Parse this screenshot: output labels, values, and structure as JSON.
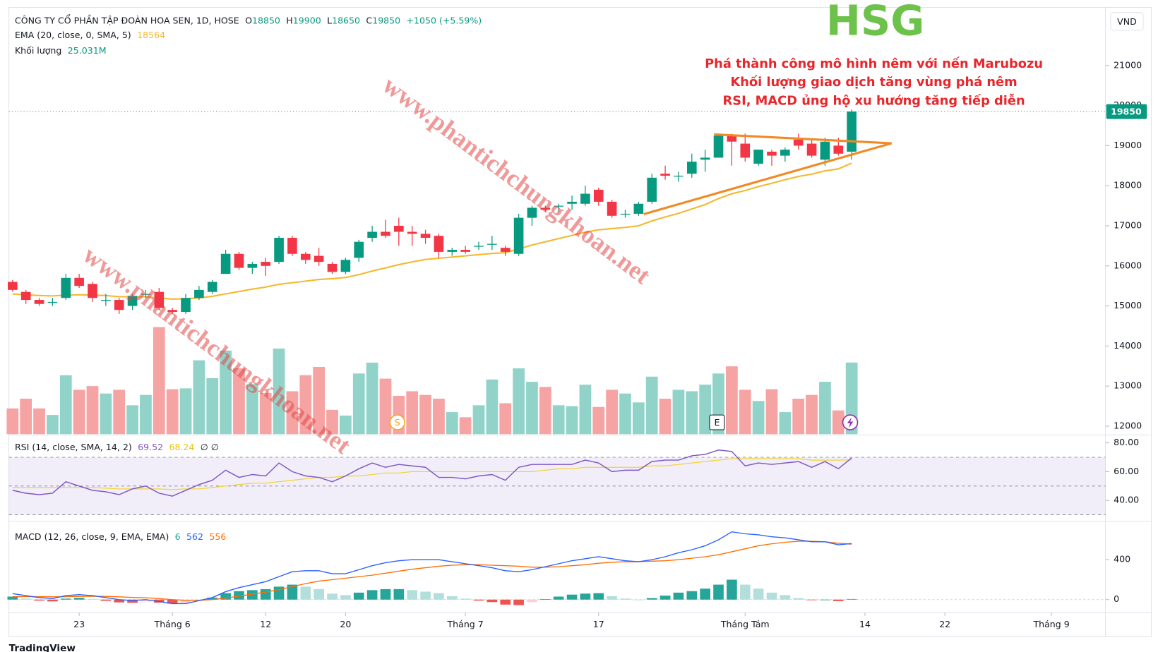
{
  "chart_data": {
    "type": "candlestick",
    "title": "CÔNG TY CỔ PHẦN TẬP ĐOÀN HOA SEN, 1D, HOSE",
    "currency": "VND",
    "ohlc_letters": [
      "O",
      "H",
      "L",
      "C"
    ],
    "change_label": "+1050 (+5.59%)",
    "colors": {
      "up": "#089981",
      "down": "#f23645",
      "volume_up": "#92d3c9",
      "volume_down": "#f5a3a3"
    },
    "open": [
      15600,
      15350,
      15150,
      15100,
      15200,
      15700,
      15550,
      15150,
      15150,
      15000,
      15300,
      15350,
      14900,
      14850,
      15200,
      15350,
      15800,
      16300,
      15950,
      16100,
      16100,
      16700,
      16300,
      16250,
      16050,
      15850,
      16200,
      16700,
      16850,
      17000,
      16850,
      16800,
      16750,
      16350,
      16400,
      16500,
      16550,
      16450,
      16300,
      17200,
      17450,
      17500,
      17550,
      17550,
      17900,
      17600,
      17300,
      17300,
      17600,
      18300,
      18250,
      18300,
      18650,
      18700,
      19250,
      19050,
      18550,
      18850,
      18750,
      19150,
      19050,
      18650,
      19000,
      18850
    ],
    "high": [
      15650,
      15400,
      15200,
      15200,
      15800,
      15800,
      15600,
      15300,
      15200,
      15300,
      15400,
      15450,
      14950,
      15300,
      15500,
      15650,
      16400,
      16350,
      16100,
      16200,
      16750,
      16750,
      16350,
      16450,
      16100,
      16200,
      16650,
      17000,
      17150,
      17200,
      17000,
      16900,
      16800,
      16450,
      16500,
      16600,
      16750,
      16500,
      17300,
      17500,
      17500,
      17550,
      17750,
      18000,
      17950,
      17650,
      17400,
      17600,
      18300,
      18500,
      18350,
      18800,
      18900,
      19300,
      19300,
      19300,
      18900,
      18900,
      18950,
      19300,
      19150,
      19200,
      19200,
      19900
    ],
    "low": [
      15350,
      15050,
      15000,
      15000,
      15150,
      15450,
      15100,
      15000,
      14800,
      14900,
      15200,
      14900,
      14800,
      14800,
      15150,
      15300,
      15800,
      15900,
      15800,
      15750,
      16050,
      16250,
      16050,
      16000,
      15800,
      15800,
      16100,
      16600,
      16700,
      16500,
      16500,
      16550,
      16200,
      16250,
      16300,
      16400,
      16400,
      16250,
      16250,
      17000,
      17350,
      17350,
      17400,
      17500,
      17500,
      17200,
      17200,
      17250,
      17550,
      18150,
      18100,
      18200,
      18350,
      18700,
      18500,
      18600,
      18500,
      18500,
      18600,
      18900,
      18700,
      18500,
      18750,
      18650
    ],
    "close": [
      15400,
      15150,
      15050,
      15100,
      15700,
      15500,
      15200,
      15150,
      14900,
      15250,
      15300,
      14950,
      14850,
      15200,
      15400,
      15600,
      16300,
      15950,
      16050,
      16000,
      16700,
      16300,
      16150,
      16100,
      15850,
      16150,
      16600,
      16850,
      16750,
      16850,
      16800,
      16700,
      16350,
      16400,
      16350,
      16500,
      16550,
      16350,
      17200,
      17450,
      17400,
      17500,
      17600,
      17800,
      17600,
      17250,
      17300,
      17550,
      18200,
      18250,
      18250,
      18600,
      18700,
      19250,
      19100,
      18700,
      18900,
      18750,
      18900,
      19000,
      18750,
      19100,
      18800,
      19850
    ],
    "ylim": [
      11800,
      22450
    ],
    "yticks": [
      12000,
      13000,
      14000,
      15000,
      16000,
      17000,
      18000,
      19000,
      20000,
      21000
    ],
    "xticks": [
      {
        "value": 5,
        "label": "23"
      },
      {
        "value": 12,
        "label": "Tháng 6"
      },
      {
        "value": 19,
        "label": "12"
      },
      {
        "value": 25,
        "label": "20"
      },
      {
        "value": 34,
        "label": "Tháng 7"
      },
      {
        "value": 44,
        "label": "17"
      },
      {
        "value": 55,
        "label": "Tháng Tám"
      },
      {
        "value": 64,
        "label": "14"
      },
      {
        "value": 70,
        "label": "22"
      },
      {
        "value": 78,
        "label": "Tháng 9"
      }
    ],
    "ema": {
      "name": "EMA (20, close, 0, SMA, 5)",
      "color": "#f5b82e",
      "values": [
        15300,
        15280,
        15260,
        15250,
        15270,
        15280,
        15270,
        15260,
        15230,
        15230,
        15230,
        15200,
        15170,
        15180,
        15200,
        15240,
        15300,
        15360,
        15420,
        15470,
        15540,
        15580,
        15620,
        15660,
        15680,
        15710,
        15780,
        15870,
        15950,
        16030,
        16100,
        16160,
        16190,
        16220,
        16250,
        16280,
        16310,
        16330,
        16420,
        16520,
        16600,
        16680,
        16760,
        16840,
        16900,
        16930,
        16960,
        17000,
        17120,
        17220,
        17310,
        17420,
        17530,
        17680,
        17800,
        17880,
        17980,
        18060,
        18150,
        18230,
        18290,
        18370,
        18420,
        18564
      ]
    },
    "volume": {
      "name": "Khối lượng",
      "value_label": "25.031M",
      "values": [
        9.0,
        12.4,
        9.0,
        6.7,
        20.6,
        15.5,
        16.8,
        14.2,
        15.5,
        10.1,
        13.7,
        37.4,
        15.7,
        16.0,
        25.8,
        19.6,
        29.2,
        23.0,
        17.5,
        14.4,
        29.9,
        15.0,
        20.6,
        23.5,
        8.5,
        6.5,
        21.2,
        25.0,
        19.4,
        13.4,
        15.0,
        13.7,
        12.4,
        7.7,
        5.9,
        10.1,
        19.1,
        10.8,
        23.0,
        18.3,
        16.5,
        10.1,
        9.8,
        17.3,
        9.5,
        15.5,
        14.2,
        11.1,
        20.1,
        12.4,
        15.5,
        15.0,
        17.3,
        21.2,
        23.7,
        15.5,
        11.6,
        15.7,
        7.7,
        12.4,
        13.7,
        18.3,
        8.3,
        25.031
      ]
    },
    "rsi": {
      "name": "RSI (14, close, SMA, 14, 2)",
      "color": "#7e57c2",
      "extra": "∅  ∅",
      "values": [
        47,
        45,
        44,
        45,
        53,
        50,
        47,
        46,
        44,
        48,
        50,
        45,
        43,
        47,
        51,
        54,
        61,
        56,
        58,
        57,
        66,
        60,
        57,
        56,
        53,
        57,
        62,
        66,
        63,
        65,
        64,
        63,
        56,
        56,
        55,
        57,
        58,
        54,
        63,
        65,
        65,
        65,
        65,
        68,
        66,
        60,
        61,
        61,
        67,
        68,
        68,
        71,
        72,
        75,
        74,
        64,
        66,
        65,
        66,
        67,
        63,
        67,
        62,
        69.52
      ],
      "ma": {
        "color": "#f2d33a",
        "values": [
          49,
          49,
          49,
          49,
          49,
          49,
          49,
          48.5,
          48,
          48,
          48,
          48,
          47.5,
          48,
          48,
          49,
          50,
          51,
          52,
          52,
          53,
          54,
          55,
          56,
          56,
          57,
          57,
          58,
          59,
          59,
          60,
          60,
          60,
          60,
          60,
          60,
          60,
          60,
          60,
          60,
          61,
          62,
          62,
          63,
          63,
          63,
          63,
          63,
          64,
          64,
          65,
          66,
          67,
          68,
          69,
          69,
          69,
          69,
          69,
          69,
          68,
          68,
          68,
          68.24
        ]
      },
      "ylim": [
        26,
        85
      ],
      "yticks": [
        {
          "value": 80,
          "label": "80.00"
        },
        {
          "value": 60,
          "label": "60.00"
        },
        {
          "value": 40,
          "label": "40.00"
        }
      ],
      "levels": [
        70,
        50,
        30
      ]
    },
    "macd": {
      "name": "MACD (12, 26, close, 9, EMA, EMA)",
      "histogram": [
        30,
        10,
        -10,
        -18,
        10,
        18,
        7,
        -12,
        -28,
        -32,
        -18,
        -30,
        -40,
        -32,
        -2,
        20,
        65,
        85,
        95,
        105,
        130,
        150,
        130,
        105,
        60,
        45,
        70,
        95,
        105,
        105,
        95,
        80,
        65,
        35,
        10,
        -10,
        -25,
        -50,
        -55,
        -25,
        5,
        30,
        50,
        60,
        65,
        35,
        10,
        0,
        15,
        40,
        70,
        85,
        110,
        150,
        200,
        150,
        110,
        70,
        45,
        15,
        -5,
        0,
        -15,
        6
      ],
      "macd": {
        "color": "#2962ff",
        "values": [
          60,
          40,
          20,
          10,
          40,
          50,
          40,
          20,
          0,
          -10,
          0,
          -20,
          -40,
          -40,
          -10,
          20,
          80,
          120,
          150,
          180,
          230,
          280,
          290,
          290,
          260,
          260,
          300,
          340,
          370,
          390,
          400,
          400,
          400,
          380,
          360,
          340,
          320,
          290,
          280,
          300,
          330,
          360,
          390,
          410,
          430,
          410,
          390,
          380,
          400,
          430,
          470,
          500,
          540,
          600,
          680,
          660,
          650,
          630,
          620,
          600,
          580,
          580,
          550,
          562
        ]
      },
      "signal": {
        "color": "#ff6d00",
        "values": [
          30,
          30,
          30,
          28,
          30,
          32,
          33,
          32,
          28,
          22,
          18,
          10,
          0,
          -8,
          -8,
          0,
          15,
          35,
          55,
          75,
          100,
          130,
          160,
          185,
          200,
          215,
          230,
          245,
          265,
          285,
          305,
          320,
          335,
          345,
          350,
          350,
          345,
          340,
          335,
          325,
          325,
          330,
          340,
          350,
          365,
          375,
          380,
          380,
          385,
          390,
          400,
          415,
          430,
          450,
          480,
          510,
          540,
          560,
          575,
          585,
          585,
          580,
          565,
          556
        ]
      },
      "ylim": [
        -133,
        778
      ],
      "yticks": [
        0,
        400
      ]
    },
    "annotations": {
      "ticker": "HSG",
      "notes": [
        "Phá thành công mô hình nêm với nến Marubozu",
        "Khối lượng giao dịch tăng vùng phá nêm",
        "RSI, MACD ủng hộ xu hướng tăng tiếp diễn"
      ]
    },
    "watermark": "www.phantichchungkhoan.net",
    "badges": [
      "S",
      "E"
    ],
    "footer": "TradingView"
  }
}
